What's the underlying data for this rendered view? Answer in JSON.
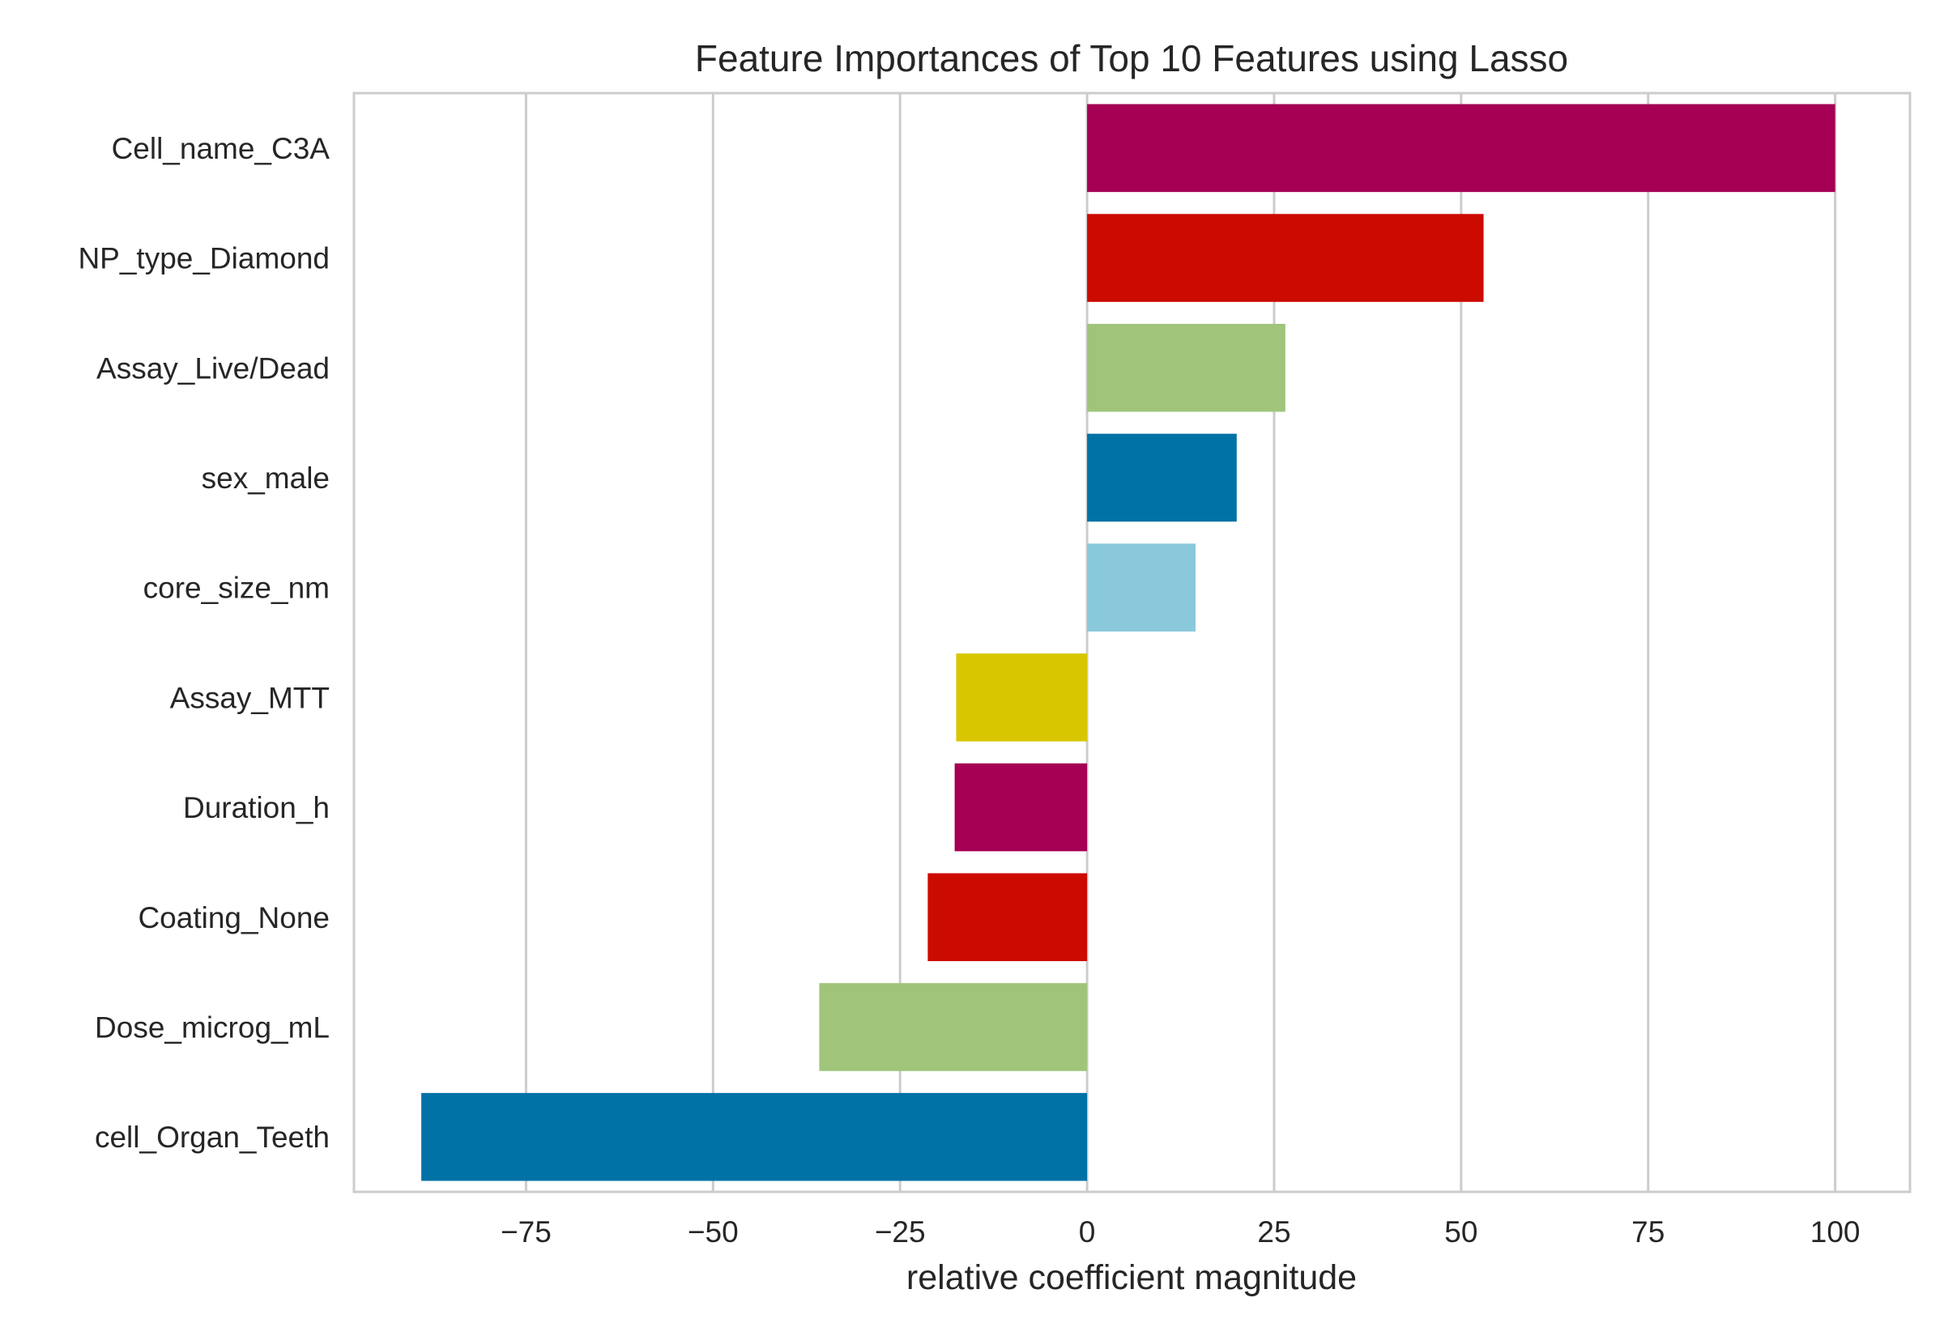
{
  "chart_data": {
    "type": "bar",
    "orientation": "horizontal",
    "title": "Feature Importances of Top 10 Features using Lasso",
    "xlabel": "relative coefficient magnitude",
    "ylabel": "",
    "xlim": [
      -98,
      110
    ],
    "xticks": [
      -75,
      -50,
      -25,
      0,
      25,
      50,
      75,
      100
    ],
    "xtick_labels": [
      "−75",
      "−50",
      "−25",
      "0",
      "25",
      "50",
      "75",
      "100"
    ],
    "grid": "vertical",
    "legend": "none",
    "categories": [
      "Cell_name_C3A",
      "NP_type_Diamond",
      "Assay_Live/Dead",
      "sex_male",
      "core_size_nm",
      "Assay_MTT",
      "Duration_h",
      "Coating_None",
      "Dose_microg_mL",
      "cell_Organ_Teeth"
    ],
    "values": [
      100,
      53,
      26.5,
      20,
      14.5,
      -17.5,
      -17.7,
      -21.3,
      -35.8,
      -89
    ],
    "colors": [
      "#a50054",
      "#cc0b00",
      "#9fc47a",
      "#0072a6",
      "#8ac9db",
      "#d8c700",
      "#a50054",
      "#cc0b00",
      "#9fc47a",
      "#0072a6"
    ]
  }
}
